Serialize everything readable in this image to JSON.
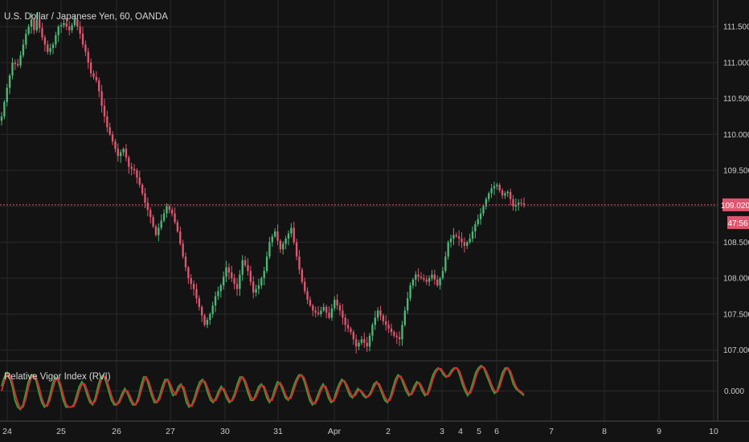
{
  "chart_data": [
    {
      "type": "candlestick",
      "title": "U.S. Dollar / Japanese Yen, 60, OANDA",
      "ylim": [
        106.85,
        111.87
      ],
      "y_ticks": [
        "111.500",
        "111.000",
        "110.500",
        "110.000",
        "109.500",
        "109.000",
        "108.500",
        "108.000",
        "107.500",
        "107.000"
      ],
      "y_tick_values": [
        111.5,
        111.0,
        110.5,
        110.0,
        109.5,
        109.0,
        108.5,
        108.0,
        107.5,
        107.0
      ],
      "x_ticks": [
        "24",
        "25",
        "26",
        "27",
        "30",
        "31",
        "Apr",
        "2",
        "3",
        "4",
        "5",
        "6",
        "7",
        "8",
        "9",
        "10"
      ],
      "last_price": 109.02,
      "last_price_label": "109.020",
      "countdown_label": "47:56",
      "up_color": "#4bb877",
      "down_color": "#e0566f",
      "price_line_color": "#e0566f",
      "path": [
        [
          0,
          110.3
        ],
        [
          2,
          110.7
        ],
        [
          4,
          111.05
        ],
        [
          6,
          110.95
        ],
        [
          8,
          111.4
        ],
        [
          9,
          111.6
        ],
        [
          10,
          111.45
        ],
        [
          11,
          111.6
        ],
        [
          12,
          111.35
        ],
        [
          14,
          111.15
        ],
        [
          15,
          111.25
        ],
        [
          17,
          111.5
        ],
        [
          19,
          111.55
        ],
        [
          20,
          111.45
        ],
        [
          22,
          111.6
        ],
        [
          23,
          111.4
        ],
        [
          25,
          111.15
        ],
        [
          26,
          110.85
        ],
        [
          27,
          110.75
        ],
        [
          29,
          110.4
        ],
        [
          31,
          110.1
        ],
        [
          32,
          109.9
        ],
        [
          33,
          109.7
        ],
        [
          34,
          109.8
        ],
        [
          35,
          109.55
        ],
        [
          36,
          109.5
        ],
        [
          37,
          109.3
        ],
        [
          38,
          109.05
        ],
        [
          40,
          108.85
        ],
        [
          41,
          108.6
        ],
        [
          42,
          108.8
        ],
        [
          43,
          109.0
        ],
        [
          44,
          108.9
        ],
        [
          45,
          108.65
        ],
        [
          46,
          108.3
        ],
        [
          47,
          108.0
        ],
        [
          48,
          107.85
        ],
        [
          49,
          107.6
        ],
        [
          50,
          107.35
        ],
        [
          51,
          107.5
        ],
        [
          52,
          107.75
        ],
        [
          53,
          107.9
        ],
        [
          54,
          108.15
        ],
        [
          55,
          108.0
        ],
        [
          56,
          107.85
        ],
        [
          57,
          108.25
        ],
        [
          58,
          108.1
        ],
        [
          59,
          107.8
        ],
        [
          60,
          107.9
        ],
        [
          61,
          108.1
        ],
        [
          62,
          108.5
        ],
        [
          63,
          108.65
        ],
        [
          64,
          108.4
        ],
        [
          65,
          108.55
        ],
        [
          66,
          108.7
        ],
        [
          67,
          108.3
        ],
        [
          68,
          107.95
        ],
        [
          69,
          107.7
        ],
        [
          70,
          107.55
        ],
        [
          71,
          107.5
        ],
        [
          72,
          107.6
        ],
        [
          73,
          107.45
        ],
        [
          74,
          107.7
        ],
        [
          75,
          107.55
        ],
        [
          76,
          107.35
        ],
        [
          77,
          107.25
        ],
        [
          78,
          107.05
        ],
        [
          79,
          107.15
        ],
        [
          80,
          107.05
        ],
        [
          81,
          107.35
        ],
        [
          82,
          107.55
        ],
        [
          83,
          107.4
        ],
        [
          84,
          107.3
        ],
        [
          85,
          107.2
        ],
        [
          86,
          107.15
        ],
        [
          87,
          107.55
        ],
        [
          88,
          107.9
        ],
        [
          89,
          108.05
        ],
        [
          90,
          108.0
        ],
        [
          91,
          107.95
        ],
        [
          92,
          108.05
        ],
        [
          93,
          107.9
        ],
        [
          94,
          108.1
        ],
        [
          95,
          108.5
        ],
        [
          96,
          108.6
        ],
        [
          97,
          108.55
        ],
        [
          98,
          108.45
        ],
        [
          99,
          108.55
        ],
        [
          100,
          108.75
        ],
        [
          101,
          108.9
        ],
        [
          102,
          109.1
        ],
        [
          103,
          109.25
        ],
        [
          104,
          109.3
        ],
        [
          105,
          109.15
        ],
        [
          106,
          109.2
        ],
        [
          107,
          109.0
        ],
        [
          108,
          109.05
        ],
        [
          109,
          109.02
        ]
      ],
      "y": [
        110.25,
        110.45,
        110.65,
        110.82,
        111.0,
        110.98,
        110.96,
        111.1,
        111.25,
        111.4,
        111.5,
        111.6,
        111.45,
        111.6,
        111.48,
        111.35,
        111.25,
        111.15,
        111.2,
        111.25,
        111.38,
        111.5,
        111.52,
        111.55,
        111.5,
        111.45,
        111.52,
        111.6,
        111.5,
        111.4,
        111.25,
        111.15,
        111.0,
        110.85,
        110.8,
        110.75,
        110.6,
        110.4,
        110.25,
        110.1,
        110.0,
        109.9,
        109.8,
        109.7,
        109.75,
        109.8,
        109.68,
        109.55,
        109.52,
        109.5,
        109.4,
        109.3,
        109.18,
        109.05,
        108.95,
        108.85,
        108.72,
        108.6,
        108.7,
        108.8,
        108.9,
        109.0,
        108.95,
        108.9,
        108.78,
        108.65,
        108.48,
        108.3,
        108.15,
        108.0,
        107.92,
        107.85,
        107.72,
        107.6,
        107.48,
        107.35,
        107.42,
        107.5,
        107.62,
        107.75,
        107.82,
        107.9,
        108.02,
        108.15,
        108.08,
        108.0,
        107.92,
        107.85,
        108.05,
        108.25,
        108.18,
        108.1,
        107.95,
        107.8,
        107.85,
        107.9,
        108.0,
        108.1,
        108.3,
        108.5,
        108.58,
        108.65,
        108.52,
        108.4,
        108.48,
        108.55,
        108.62,
        108.7,
        108.5,
        108.3,
        108.12,
        107.95,
        107.82,
        107.7,
        107.62,
        107.55,
        107.52,
        107.5,
        107.55,
        107.6,
        107.52,
        107.45,
        107.58,
        107.7,
        107.62,
        107.55,
        107.45,
        107.35,
        107.3,
        107.25,
        107.15,
        107.05,
        107.1,
        107.15,
        107.1,
        107.05,
        107.2,
        107.35,
        107.45,
        107.55,
        107.48,
        107.4,
        107.35,
        107.3,
        107.25,
        107.2,
        107.18,
        107.15,
        107.35,
        107.55,
        107.72,
        107.9,
        107.98,
        108.05,
        108.02,
        108.0,
        107.98,
        107.95,
        108.0,
        108.05,
        107.98,
        107.9,
        108.0,
        108.1,
        108.3,
        108.5,
        108.55,
        108.6,
        108.58,
        108.55,
        108.5,
        108.45,
        108.5,
        108.55,
        108.65,
        108.75,
        108.82,
        108.9,
        109.0,
        109.1,
        109.18,
        109.25,
        109.28,
        109.3,
        109.22,
        109.15,
        109.18,
        109.2,
        109.1,
        109.0,
        109.02,
        109.05,
        109.04,
        109.02
      ]
    },
    {
      "type": "line",
      "title": "Relative Vigor Index (RVI)",
      "y_ticks": [
        "0.000"
      ],
      "ylim": [
        -0.55,
        0.55
      ],
      "x_ticks": [
        "24",
        "25",
        "26",
        "27",
        "30",
        "31",
        "Apr",
        "2",
        "3",
        "4",
        "5",
        "6",
        "7",
        "8",
        "9",
        "10"
      ],
      "series": [
        {
          "color": "#2e9e3e",
          "values": [
            0.1,
            0.3,
            0.4,
            0.3,
            0.1,
            -0.2,
            -0.35,
            -0.4,
            -0.3,
            -0.05,
            0.2,
            0.35,
            0.35,
            0.2,
            -0.05,
            -0.25,
            -0.35,
            -0.3,
            -0.1,
            0.15,
            0.3,
            0.25,
            0.05,
            -0.2,
            -0.35,
            -0.35,
            -0.35,
            -0.3,
            -0.1,
            0.1,
            0.2,
            0.1,
            -0.1,
            -0.25,
            -0.3,
            -0.15,
            0.1,
            0.3,
            0.35,
            0.2,
            0.0,
            -0.2,
            -0.3,
            -0.3,
            -0.2,
            -0.05,
            0.05,
            -0.05,
            -0.2,
            -0.3,
            -0.3,
            -0.15,
            0.1,
            0.3,
            0.3,
            0.1,
            -0.1,
            -0.25,
            -0.25,
            -0.1,
            0.1,
            0.25,
            0.25,
            0.05,
            -0.1,
            -0.05,
            0.1,
            0.15,
            0.0,
            -0.25,
            -0.35,
            -0.3,
            -0.15,
            0.05,
            0.2,
            0.25,
            0.15,
            -0.05,
            -0.2,
            -0.25,
            -0.15,
            0.0,
            0.1,
            0.0,
            -0.15,
            -0.25,
            -0.2,
            -0.05,
            0.15,
            0.3,
            0.3,
            0.15,
            -0.05,
            -0.2,
            -0.2,
            -0.05,
            0.1,
            0.15,
            0.05,
            -0.15,
            -0.25,
            -0.15,
            0.05,
            0.2,
            0.15,
            0.0,
            -0.15,
            -0.2,
            -0.1,
            0.1,
            0.25,
            0.35,
            0.35,
            0.2,
            0.0,
            -0.2,
            -0.3,
            -0.25,
            -0.1,
            0.05,
            0.15,
            0.05,
            -0.15,
            -0.25,
            -0.2,
            0.0,
            0.15,
            0.25,
            0.2,
            0.05,
            -0.1,
            -0.15,
            -0.05,
            0.05,
            0.0,
            -0.1,
            -0.15,
            -0.1,
            0.0,
            0.15,
            0.2,
            0.1,
            -0.05,
            -0.2,
            -0.25,
            -0.15,
            0.05,
            0.25,
            0.35,
            0.3,
            0.15,
            0.0,
            -0.1,
            -0.05,
            0.1,
            0.2,
            0.15,
            0.0,
            -0.1,
            -0.05,
            0.15,
            0.35,
            0.45,
            0.5,
            0.45,
            0.35,
            0.3,
            0.35,
            0.45,
            0.5,
            0.5,
            0.35,
            0.15,
            0.0,
            -0.1,
            0.0,
            0.2,
            0.4,
            0.5,
            0.55,
            0.5,
            0.35,
            0.2,
            0.05,
            -0.05,
            0.0,
            0.2,
            0.4,
            0.5,
            0.5,
            0.35,
            0.15,
            0.05,
            0.0,
            -0.05,
            -0.1
          ]
        },
        {
          "color": "#d42a2a",
          "values": [
            0.0,
            0.2,
            0.35,
            0.35,
            0.2,
            -0.05,
            -0.25,
            -0.38,
            -0.35,
            -0.18,
            0.08,
            0.28,
            0.35,
            0.28,
            0.08,
            -0.15,
            -0.3,
            -0.33,
            -0.2,
            0.02,
            0.22,
            0.28,
            0.15,
            -0.08,
            -0.28,
            -0.35,
            -0.35,
            -0.33,
            -0.2,
            0.0,
            0.15,
            0.15,
            0.0,
            -0.18,
            -0.28,
            -0.22,
            -0.02,
            0.2,
            0.33,
            0.28,
            0.1,
            -0.1,
            -0.25,
            -0.3,
            -0.25,
            -0.12,
            0.0,
            0.0,
            -0.12,
            -0.25,
            -0.3,
            -0.22,
            -0.02,
            0.2,
            0.3,
            0.2,
            0.0,
            -0.18,
            -0.25,
            -0.18,
            0.0,
            0.18,
            0.25,
            0.15,
            0.0,
            -0.08,
            0.02,
            0.12,
            0.08,
            -0.12,
            -0.3,
            -0.33,
            -0.22,
            -0.05,
            0.12,
            0.22,
            0.2,
            0.05,
            -0.12,
            -0.22,
            -0.2,
            -0.08,
            0.05,
            0.05,
            -0.08,
            -0.2,
            -0.22,
            -0.12,
            0.05,
            0.22,
            0.3,
            0.22,
            0.05,
            -0.12,
            -0.2,
            -0.12,
            0.02,
            0.12,
            0.1,
            -0.05,
            -0.2,
            -0.2,
            -0.05,
            0.12,
            0.18,
            0.08,
            -0.08,
            -0.18,
            -0.15,
            0.0,
            0.18,
            0.3,
            0.35,
            0.28,
            0.1,
            -0.1,
            -0.25,
            -0.28,
            -0.18,
            -0.02,
            0.1,
            0.1,
            -0.05,
            -0.2,
            -0.22,
            -0.1,
            0.08,
            0.2,
            0.22,
            0.12,
            -0.02,
            -0.12,
            -0.1,
            0.0,
            0.02,
            -0.05,
            -0.12,
            -0.12,
            -0.05,
            0.08,
            0.18,
            0.15,
            0.02,
            -0.12,
            -0.22,
            -0.2,
            -0.05,
            0.15,
            0.3,
            0.32,
            0.22,
            0.08,
            -0.05,
            -0.08,
            0.02,
            0.15,
            0.18,
            0.08,
            -0.05,
            -0.08,
            0.05,
            0.25,
            0.4,
            0.48,
            0.48,
            0.4,
            0.32,
            0.32,
            0.4,
            0.48,
            0.5,
            0.42,
            0.25,
            0.08,
            -0.05,
            -0.05,
            0.1,
            0.3,
            0.45,
            0.52,
            0.52,
            0.42,
            0.28,
            0.12,
            0.0,
            -0.02,
            0.1,
            0.3,
            0.45,
            0.5,
            0.42,
            0.25,
            0.1,
            0.02,
            -0.02,
            -0.08
          ]
        }
      ]
    }
  ]
}
